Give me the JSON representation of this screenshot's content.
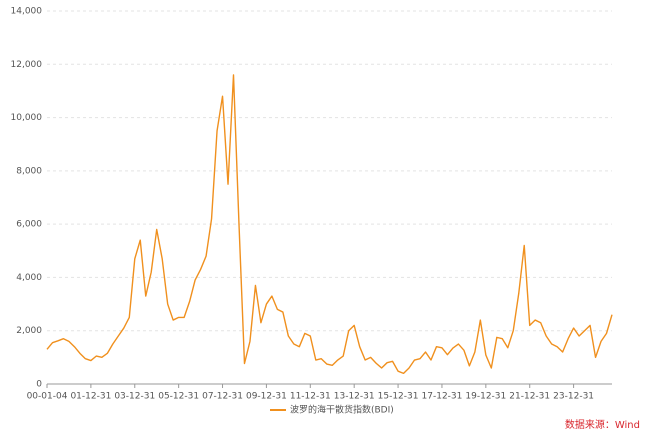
{
  "chart_data": {
    "type": "line",
    "x": [
      "00-01-04",
      "00-03-31",
      "00-06-30",
      "00-09-30",
      "00-12-31",
      "01-03-31",
      "01-06-30",
      "01-09-30",
      "01-12-31",
      "02-03-31",
      "02-06-30",
      "02-09-30",
      "02-12-31",
      "03-03-31",
      "03-06-30",
      "03-09-30",
      "03-12-31",
      "04-03-31",
      "04-06-30",
      "04-09-30",
      "04-12-31",
      "05-03-31",
      "05-06-30",
      "05-09-30",
      "05-12-31",
      "06-03-31",
      "06-06-30",
      "06-09-30",
      "06-12-31",
      "07-03-31",
      "07-06-30",
      "07-09-30",
      "07-12-31",
      "08-03-31",
      "08-06-30",
      "08-09-30",
      "08-12-31",
      "09-03-31",
      "09-06-30",
      "09-09-30",
      "09-12-31",
      "10-03-31",
      "10-06-30",
      "10-09-30",
      "10-12-31",
      "11-03-31",
      "11-06-30",
      "11-09-30",
      "11-12-31",
      "12-03-31",
      "12-06-30",
      "12-09-30",
      "12-12-31",
      "13-03-31",
      "13-06-30",
      "13-09-30",
      "13-12-31",
      "14-03-31",
      "14-06-30",
      "14-09-30",
      "14-12-31",
      "15-03-31",
      "15-06-30",
      "15-09-30",
      "15-12-31",
      "16-03-31",
      "16-06-30",
      "16-09-30",
      "16-12-31",
      "17-03-31",
      "17-06-30",
      "17-09-30",
      "17-12-31",
      "18-03-31",
      "18-06-30",
      "18-09-30",
      "18-12-31",
      "19-03-31",
      "19-06-30",
      "19-09-30",
      "19-12-31",
      "20-03-31",
      "20-06-30",
      "20-09-30",
      "20-12-31",
      "21-03-31",
      "21-06-30",
      "21-09-30",
      "21-12-31",
      "22-03-31",
      "22-06-30",
      "22-09-30",
      "22-12-31",
      "23-03-31",
      "23-06-30",
      "23-09-30",
      "23-12-31",
      "24-03-31",
      "24-06-30",
      "24-09-30",
      "24-12-31",
      "25-03-31",
      "25-06-30",
      "25-09-30"
    ],
    "series": [
      {
        "name": "波罗的海干散货指数(BDI)",
        "color": "#f0901e",
        "values": [
          1300,
          1550,
          1620,
          1700,
          1600,
          1400,
          1150,
          950,
          880,
          1050,
          1000,
          1150,
          1500,
          1800,
          2100,
          2500,
          4700,
          5400,
          3300,
          4200,
          5800,
          4700,
          3000,
          2400,
          2500,
          2500,
          3100,
          3900,
          4300,
          4800,
          6200,
          9500,
          10800,
          7500,
          11600,
          6000,
          770,
          1600,
          3700,
          2300,
          3000,
          3300,
          2800,
          2700,
          1800,
          1500,
          1400,
          1900,
          1800,
          900,
          950,
          750,
          700,
          900,
          1050,
          2000,
          2200,
          1400,
          900,
          1000,
          780,
          600,
          800,
          850,
          480,
          400,
          600,
          900,
          950,
          1200,
          900,
          1400,
          1360,
          1100,
          1350,
          1500,
          1270,
          680,
          1200,
          2400,
          1090,
          600,
          1750,
          1700,
          1360,
          2000,
          3400,
          5200,
          2200,
          2400,
          2300,
          1800,
          1500,
          1400,
          1200,
          1700,
          2100,
          1800,
          2000,
          2200,
          1000,
          1600,
          1900,
          2600
        ]
      }
    ],
    "xticks": [
      "00-01-04",
      "01-12-31",
      "03-12-31",
      "05-12-31",
      "07-12-31",
      "09-12-31",
      "11-12-31",
      "13-12-31",
      "15-12-31",
      "17-12-31",
      "19-12-31",
      "21-12-31",
      "23-12-31"
    ],
    "ylim": [
      0,
      14000
    ],
    "yticks": [
      0,
      {
        "value": 2000,
        "label": "2,000"
      },
      {
        "value": 4000,
        "label": "4,000"
      },
      {
        "value": 6000,
        "label": "6,000"
      },
      {
        "value": 8000,
        "label": "8,000"
      },
      {
        "value": 10000,
        "label": "10,000"
      },
      {
        "value": 12000,
        "label": "12,000"
      },
      {
        "value": 14000,
        "label": "14,000"
      }
    ],
    "grid": true,
    "source": "数据来源：Wind"
  }
}
